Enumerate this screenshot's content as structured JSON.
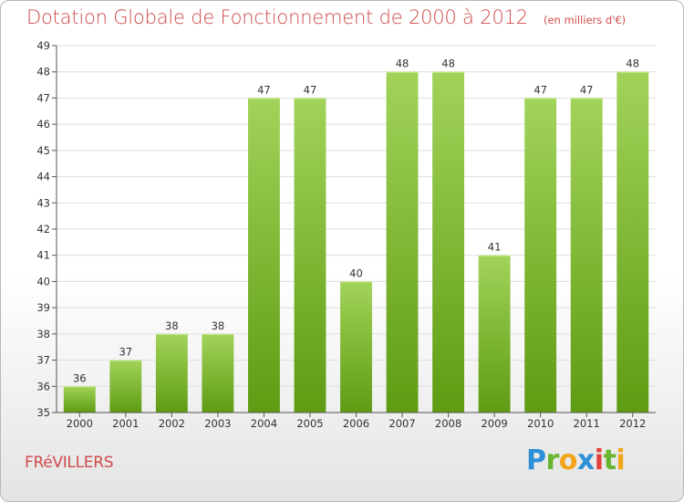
{
  "title": "Dotation Globale de Fonctionnement de 2000 à 2012",
  "subtitle": "(en milliers d'€)",
  "town": "FRéVILLERS",
  "logo": {
    "letters": [
      "P",
      "r",
      "o",
      "x",
      "i",
      "t",
      "i"
    ]
  },
  "colors": {
    "bar_top": "#a2d35a",
    "bar_bottom": "#5e9c12",
    "title": "#d04a4a",
    "axis": "#555555",
    "grid": "#dddddd"
  },
  "chart_data": {
    "type": "bar",
    "categories": [
      "2000",
      "2001",
      "2002",
      "2003",
      "2004",
      "2005",
      "2006",
      "2007",
      "2008",
      "2009",
      "2010",
      "2011",
      "2012"
    ],
    "values": [
      36,
      37,
      38,
      38,
      47,
      47,
      40,
      48,
      48,
      41,
      47,
      47,
      48
    ],
    "data_labels": [
      "36",
      "37",
      "38",
      "38",
      "47",
      "47",
      "40",
      "48",
      "48",
      "41",
      "47",
      "47",
      "48"
    ],
    "title": "Dotation Globale de Fonctionnement de 2000 à 2012",
    "subtitle": "(en milliers d'€)",
    "xlabel": "",
    "ylabel": "",
    "ylim": [
      35,
      49
    ],
    "yticks": [
      "35",
      "36",
      "37",
      "38",
      "39",
      "40",
      "41",
      "42",
      "43",
      "44",
      "45",
      "46",
      "47",
      "48",
      "49"
    ],
    "grid": true
  }
}
